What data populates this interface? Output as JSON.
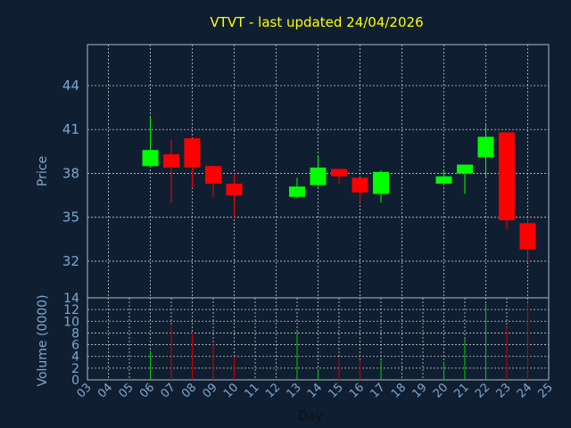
{
  "colors": {
    "background": "#0f1f31",
    "title": "#ffff00",
    "axis_text": "#7fa7cf",
    "frame": "#b0b8c0",
    "grid": "#c8c8c8",
    "up": "#00ff00",
    "down": "#ff0000",
    "vol_up": "#00cc00",
    "vol_down": "#cc0000"
  },
  "chart_data": {
    "type": "candlestick",
    "title": "VTVT - last updated 24/04/2026",
    "xlabel": "Day",
    "ylabel": "Price",
    "volume_label": "Volume (0000)",
    "grid": true,
    "x_ticks": [
      "03",
      "04",
      "05",
      "06",
      "07",
      "08",
      "09",
      "10",
      "11",
      "12",
      "13",
      "14",
      "15",
      "16",
      "17",
      "18",
      "19",
      "20",
      "21",
      "22",
      "23",
      "24",
      "25"
    ],
    "price_ylim": [
      29.5,
      46.8
    ],
    "price_ticks": [
      32,
      35,
      38,
      41,
      44
    ],
    "volume_ylim": [
      0,
      14
    ],
    "volume_ticks": [
      0,
      2,
      4,
      6,
      8,
      10,
      12,
      14
    ],
    "candles": [
      {
        "day": "06",
        "open": 38.5,
        "high": 41.8,
        "low": 38.4,
        "close": 39.6,
        "volume": 5
      },
      {
        "day": "07",
        "open": 39.3,
        "high": 40.3,
        "low": 36.0,
        "close": 38.4,
        "volume": 9.3
      },
      {
        "day": "08",
        "open": 40.4,
        "high": 40.4,
        "low": 37.0,
        "close": 38.4,
        "volume": 8
      },
      {
        "day": "09",
        "open": 38.5,
        "high": 38.5,
        "low": 36.4,
        "close": 37.3,
        "volume": 6.2
      },
      {
        "day": "10",
        "open": 37.3,
        "high": 38.0,
        "low": 35.0,
        "close": 36.5,
        "volume": 4
      },
      {
        "day": "13",
        "open": 36.4,
        "high": 37.7,
        "low": 36.3,
        "close": 37.1,
        "volume": 8.2
      },
      {
        "day": "14",
        "open": 37.2,
        "high": 39.2,
        "low": 37.1,
        "close": 38.4,
        "volume": 1.8
      },
      {
        "day": "15",
        "open": 38.3,
        "high": 38.3,
        "low": 37.3,
        "close": 37.8,
        "volume": 3.8
      },
      {
        "day": "16",
        "open": 37.7,
        "high": 37.7,
        "low": 36.0,
        "close": 36.7,
        "volume": 3.4
      },
      {
        "day": "17",
        "open": 36.6,
        "high": 38.2,
        "low": 36.0,
        "close": 38.1,
        "volume": 3.3
      },
      {
        "day": "20",
        "open": 37.3,
        "high": 38.2,
        "low": 37.2,
        "close": 37.8,
        "volume": 3.1
      },
      {
        "day": "21",
        "open": 38.0,
        "high": 38.6,
        "low": 36.6,
        "close": 38.6,
        "volume": 7
      },
      {
        "day": "22",
        "open": 39.1,
        "high": 41.4,
        "low": 37.7,
        "close": 40.5,
        "volume": 13
      },
      {
        "day": "23",
        "open": 40.8,
        "high": 40.8,
        "low": 34.2,
        "close": 34.8,
        "volume": 9
      },
      {
        "day": "24",
        "open": 34.6,
        "high": 35.0,
        "low": 32.0,
        "close": 32.8,
        "volume": 13.2
      }
    ]
  }
}
